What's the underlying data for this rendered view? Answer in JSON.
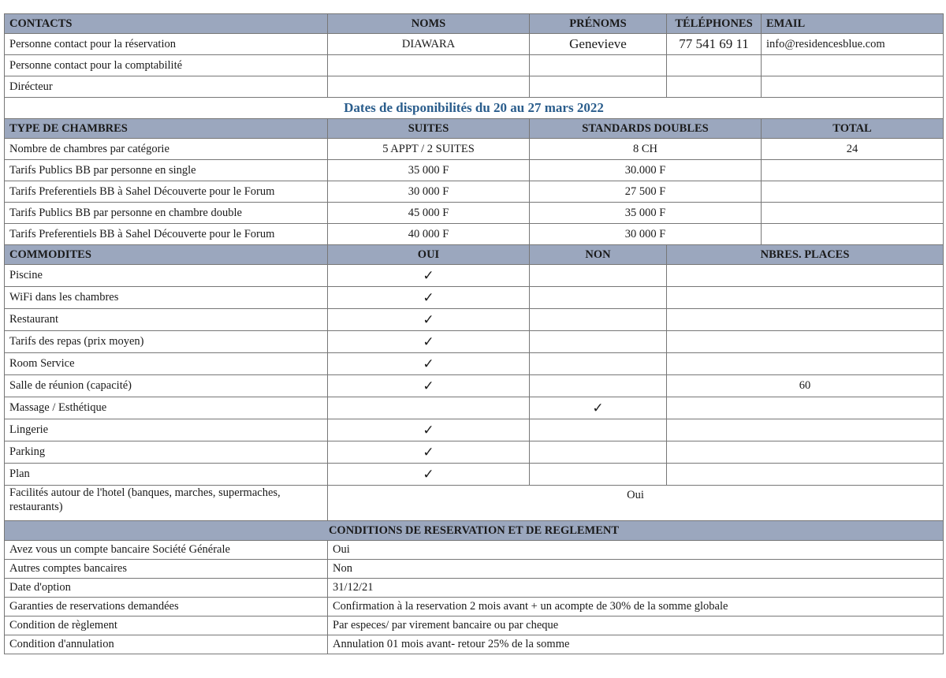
{
  "contacts": {
    "headers": [
      "CONTACTS",
      "NOMS",
      "PRÉNOMS",
      "TÉLÉPHONES",
      "EMAIL"
    ],
    "rows": [
      [
        "Personne contact pour la réservation",
        "DIAWARA",
        "Genevieve",
        "77 541 69 11",
        "info@residencesblue.com"
      ],
      [
        "Personne contact pour la comptabilité",
        "",
        "",
        "",
        ""
      ],
      [
        "Dirécteur",
        "",
        "",
        "",
        ""
      ]
    ]
  },
  "availability_title": "Dates de disponibilités du 20 au 27 mars 2022",
  "rooms": {
    "headers": [
      "TYPE DE CHAMBRES",
      "SUITES",
      "STANDARDS DOUBLES",
      "TOTAL"
    ],
    "rows": [
      [
        "Nombre de chambres par catégorie",
        "5 APPT / 2 SUITES",
        "8 CH",
        "24"
      ],
      [
        "Tarifs Publics BB par personne en single",
        "35 000 F",
        "30.000 F",
        ""
      ],
      [
        "Tarifs Preferentiels BB à Sahel Découverte pour le Forum",
        "30 000 F",
        "27 500 F",
        ""
      ],
      [
        "Tarifs Publics BB par personne en chambre double",
        "45 000 F",
        "35 000 F",
        ""
      ],
      [
        "Tarifs Preferentiels BB à Sahel Découverte pour le Forum",
        "40 000 F",
        "30 000 F",
        ""
      ]
    ]
  },
  "amenities": {
    "headers": [
      "COMMODITES",
      "OUI",
      "NON",
      "NBRES. PLACES"
    ],
    "rows": [
      [
        "Piscine",
        "✓",
        "",
        ""
      ],
      [
        "WiFi dans les chambres",
        "✓",
        "",
        ""
      ],
      [
        "Restaurant",
        "✓",
        "",
        ""
      ],
      [
        "Tarifs des repas (prix moyen)",
        "✓",
        "",
        ""
      ],
      [
        "Room Service",
        "✓",
        "",
        ""
      ],
      [
        "Salle de réunion (capacité)",
        "✓",
        "",
        "60"
      ],
      [
        "Massage / Esthétique",
        "",
        "✓",
        ""
      ],
      [
        "Lingerie",
        "✓",
        "",
        ""
      ],
      [
        "Parking",
        "✓",
        "",
        ""
      ],
      [
        "Plan",
        "✓",
        "",
        ""
      ]
    ],
    "nearby_label": "Facilités autour de l'hotel (banques, marches, supermaches, restaurants)",
    "nearby_value": "Oui"
  },
  "conditions": {
    "header": "CONDITIONS DE RESERVATION ET DE REGLEMENT",
    "rows": [
      [
        "Avez vous un compte bancaire Société Générale",
        "Oui"
      ],
      [
        "Autres comptes bancaires",
        "Non"
      ],
      [
        "Date d'option",
        "31/12/21"
      ],
      [
        "Garanties de reservations demandées",
        "Confirmation à la reservation 2 mois avant + un acompte de 30% de la somme globale"
      ],
      [
        "Condition de règlement",
        "Par especes/ par virement bancaire ou par cheque"
      ],
      [
        "Condition d'annulation",
        "Annulation 01 mois avant- retour 25% de la somme"
      ]
    ]
  }
}
